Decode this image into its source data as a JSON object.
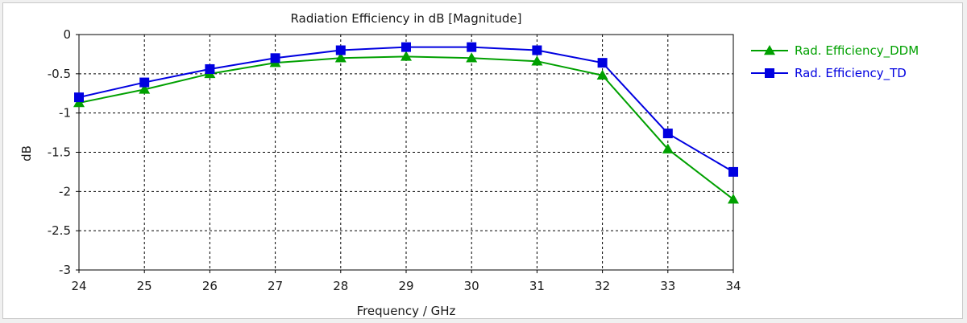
{
  "chart_data": {
    "type": "line",
    "title": "Radiation Efficiency in dB [Magnitude]",
    "xlabel": "Frequency / GHz",
    "ylabel": "dB",
    "xlim": [
      24,
      34
    ],
    "ylim": [
      -3,
      0
    ],
    "x_ticks": [
      "24",
      "25",
      "26",
      "27",
      "28",
      "29",
      "30",
      "31",
      "32",
      "33",
      "34"
    ],
    "y_ticks": [
      "0",
      "-0.5",
      "-1",
      "-1.5",
      "-2",
      "-2.5",
      "-3"
    ],
    "grid": true,
    "legend_position": "right",
    "x": [
      24,
      25,
      26,
      27,
      28,
      29,
      30,
      31,
      32,
      33,
      34
    ],
    "series": [
      {
        "name": "Rad. Efficiency_DDM",
        "color": "#00a000",
        "marker": "triangle",
        "values": [
          -0.87,
          -0.7,
          -0.5,
          -0.36,
          -0.3,
          -0.28,
          -0.3,
          -0.34,
          -0.52,
          -1.46,
          -2.1
        ]
      },
      {
        "name": "Rad. Efficiency_TD",
        "color": "#0000e0",
        "marker": "square",
        "values": [
          -0.8,
          -0.61,
          -0.44,
          -0.3,
          -0.2,
          -0.16,
          -0.16,
          -0.2,
          -0.36,
          -1.26,
          -1.75
        ]
      }
    ]
  }
}
